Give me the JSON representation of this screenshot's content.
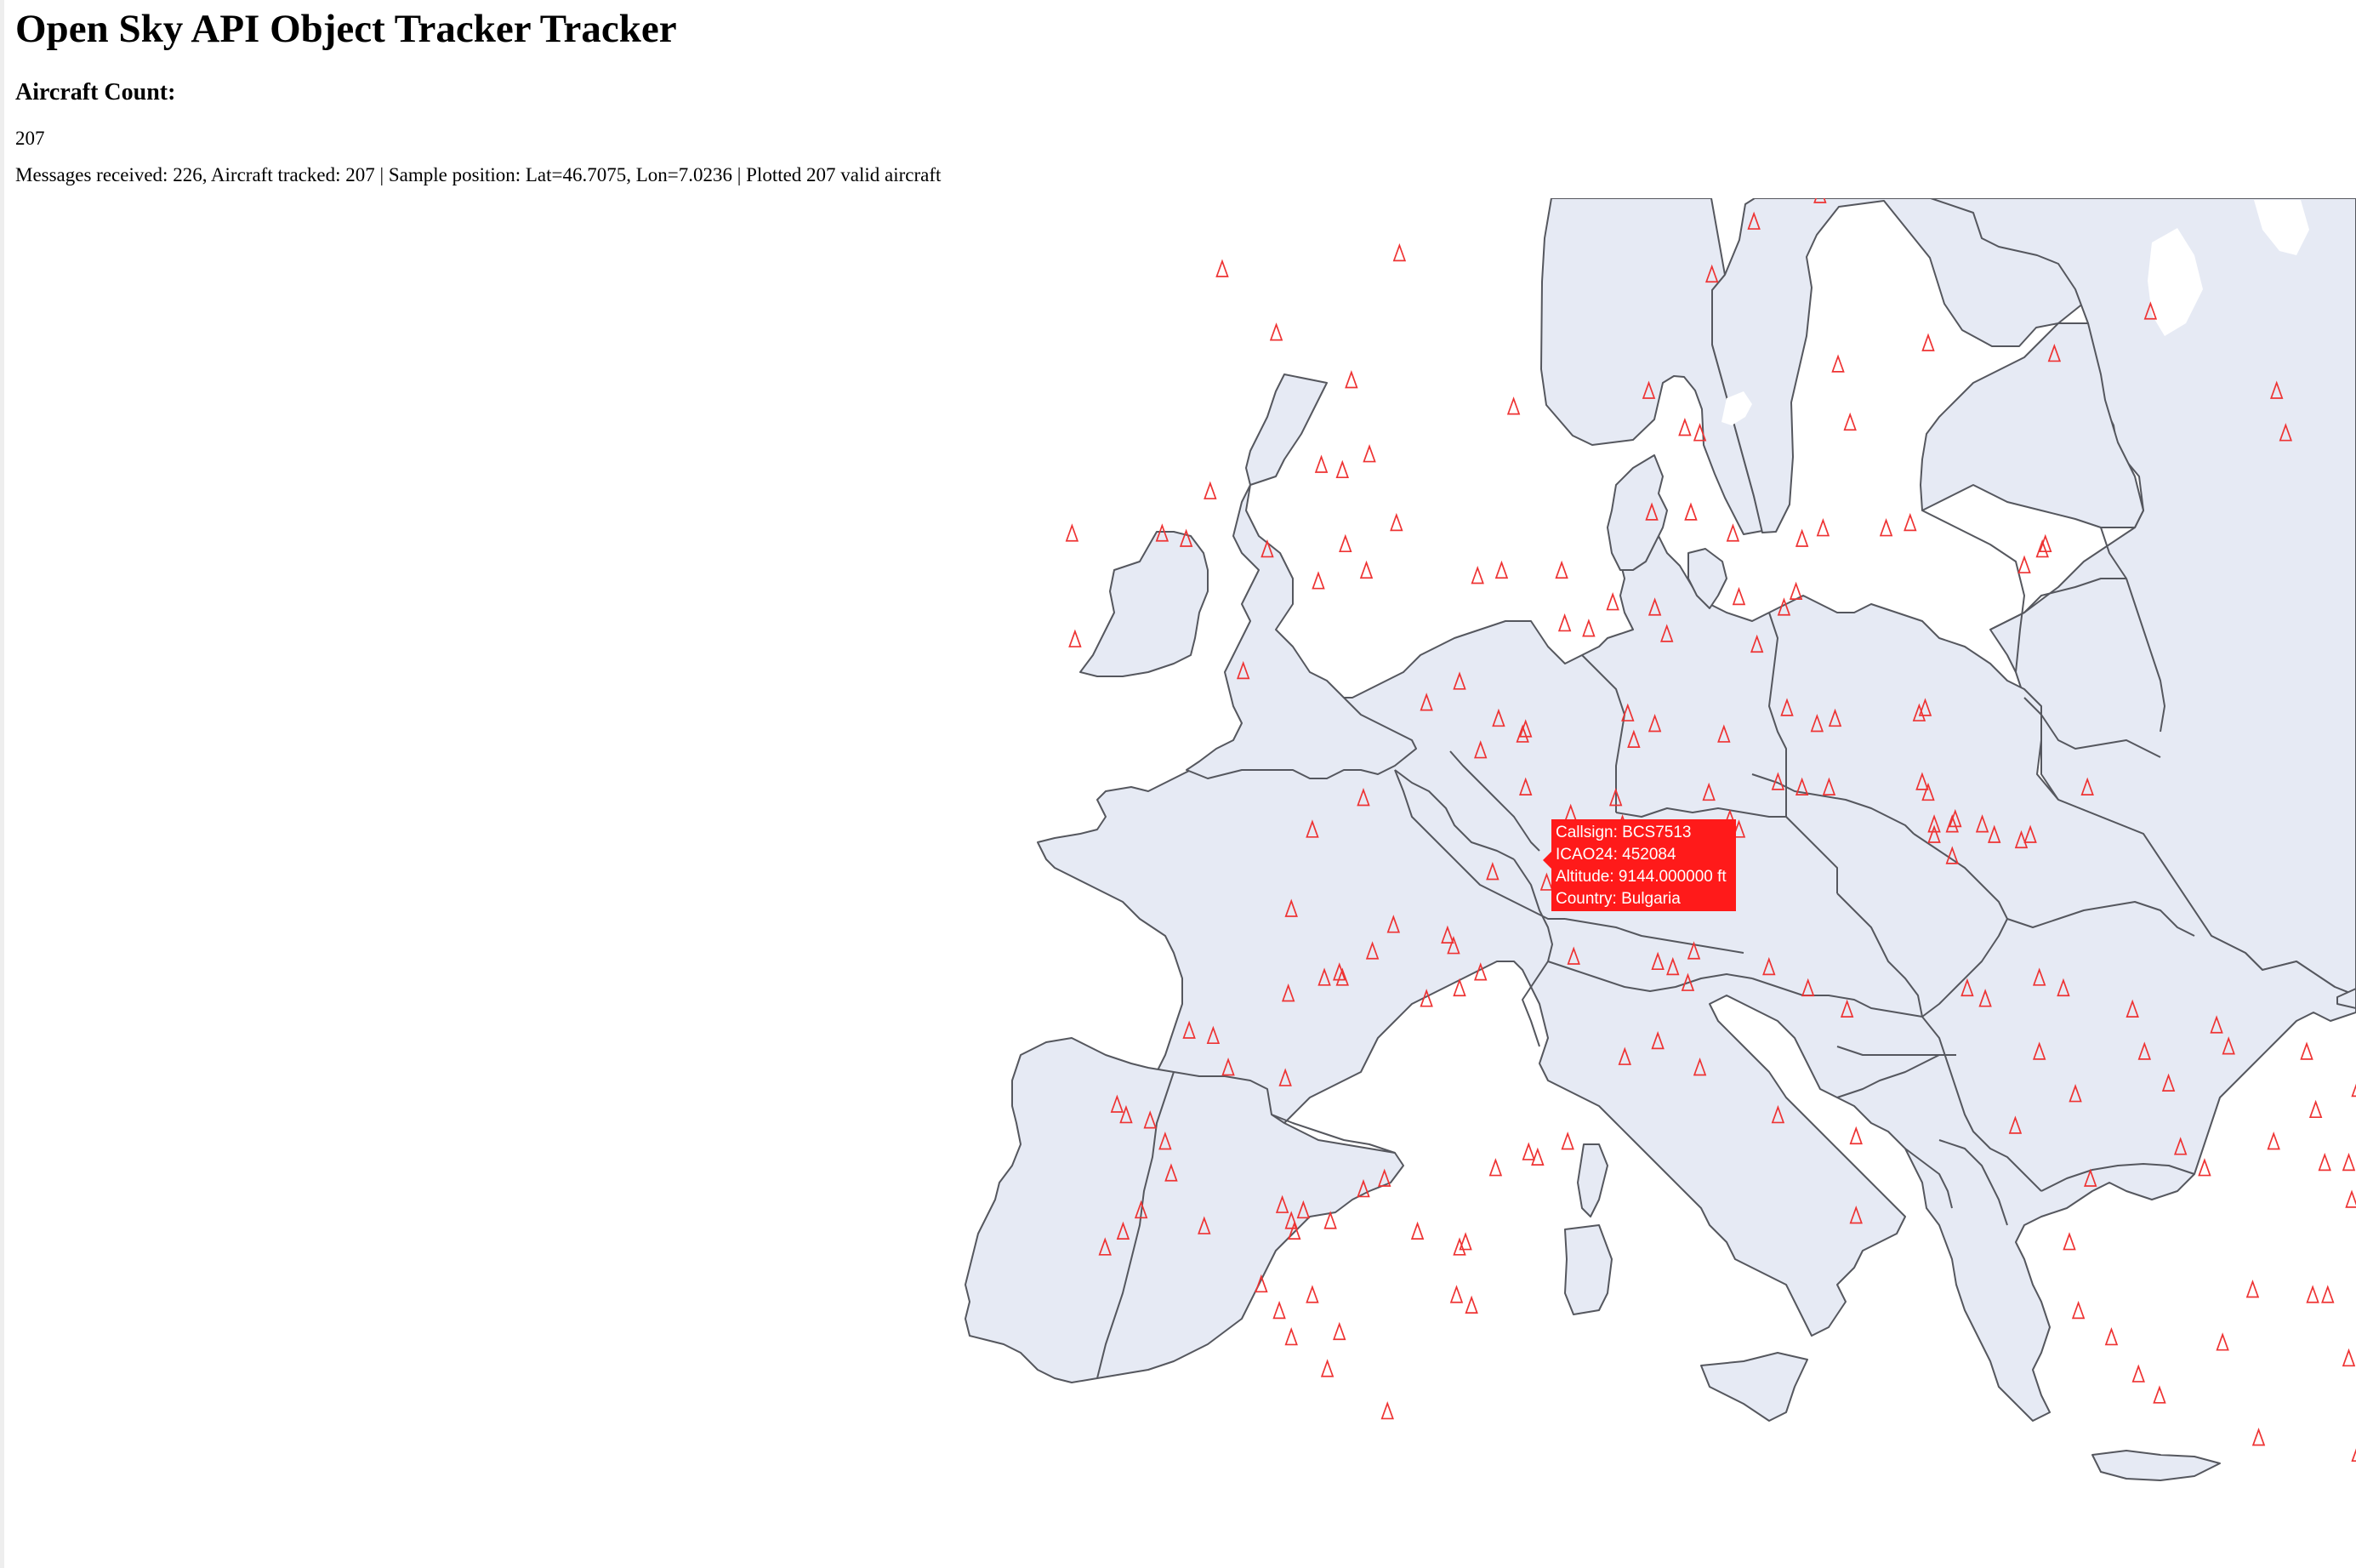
{
  "page": {
    "title": "Open Sky API Object Tracker Tracker",
    "count_heading": "Aircraft Count:",
    "count_value": "207",
    "status_line": "Messages received: 226, Aircraft tracked: 207 | Sample position: Lat=46.7075, Lon=7.0236 | Plotted 207 valid aircraft"
  },
  "tooltip": {
    "callsign": "Callsign: BCS7513",
    "icao24": "ICAO24: 452084",
    "altitude": "Altitude: 9144.000000 ft",
    "country": "Country: Bulgaria"
  },
  "map": {
    "land_color": "#e6eaf4",
    "border_color": "#55575e",
    "marker_color": "#ee3333",
    "marker_icon": "triangle-outline-icon",
    "tooltip_color": "#ff1a1a",
    "highlighted_aircraft": {
      "lat": 46.7075,
      "lon": 7.0236
    },
    "aircraft": [
      [
        61.2,
        5.3
      ],
      [
        60.0,
        -10.1
      ],
      [
        61.3,
        14.4
      ],
      [
        61.7,
        24.0
      ],
      [
        59.1,
        27.1
      ],
      [
        59.7,
        22.6
      ],
      [
        59.2,
        7.9
      ],
      [
        58.8,
        12.7
      ],
      [
        58.6,
        13.6
      ],
      [
        58.1,
        11.4
      ],
      [
        57.1,
        10.0
      ],
      [
        57.2,
        -6.3
      ],
      [
        56.0,
        -4.5
      ],
      [
        57.5,
        -0.4
      ],
      [
        55.4,
        14.2
      ],
      [
        55.6,
        21.4
      ],
      [
        56.4,
        24.6
      ],
      [
        55.8,
        17.2
      ],
      [
        54.3,
        14.6
      ],
      [
        55.1,
        -2.0
      ],
      [
        54.6,
        3.4
      ],
      [
        54.9,
        28.8
      ],
      [
        54.1,
        29.1
      ],
      [
        54.9,
        7.9
      ],
      [
        54.2,
        9.1
      ],
      [
        54.1,
        9.6
      ],
      [
        53.7,
        -1.4
      ],
      [
        53.5,
        -3.0
      ],
      [
        53.4,
        -2.3
      ],
      [
        53.0,
        -6.7
      ],
      [
        52.2,
        -11.3
      ],
      [
        52.2,
        -8.3
      ],
      [
        52.1,
        -7.5
      ],
      [
        51.9,
        -4.8
      ],
      [
        52.4,
        -0.5
      ],
      [
        52.0,
        -2.2
      ],
      [
        51.3,
        -3.1
      ],
      [
        51.5,
        -1.5
      ],
      [
        51.4,
        2.2
      ],
      [
        51.5,
        3.0
      ],
      [
        51.5,
        5.0
      ],
      [
        52.6,
        9.3
      ],
      [
        52.6,
        8.0
      ],
      [
        52.2,
        10.7
      ],
      [
        52.1,
        13.0
      ],
      [
        52.3,
        13.7
      ],
      [
        52.3,
        15.8
      ],
      [
        52.4,
        16.6
      ],
      [
        51.9,
        21.0
      ],
      [
        52.0,
        21.1
      ],
      [
        51.6,
        20.4
      ],
      [
        51.0,
        10.9
      ],
      [
        50.8,
        12.4
      ],
      [
        51.1,
        12.8
      ],
      [
        50.9,
        6.7
      ],
      [
        50.4,
        5.9
      ],
      [
        50.5,
        5.1
      ],
      [
        50.3,
        8.5
      ],
      [
        50.1,
        11.5
      ],
      [
        50.8,
        8.1
      ],
      [
        50.2,
        -11.2
      ],
      [
        49.6,
        -5.6
      ],
      [
        49.0,
        0.5
      ],
      [
        49.4,
        1.6
      ],
      [
        48.7,
        2.9
      ],
      [
        48.5,
        3.8
      ],
      [
        48.4,
        3.7
      ],
      [
        48.1,
        2.3
      ],
      [
        47.4,
        3.8
      ],
      [
        47.2,
        -1.6
      ],
      [
        46.6,
        -3.3
      ],
      [
        48.8,
        7.2
      ],
      [
        48.3,
        7.4
      ],
      [
        48.6,
        8.1
      ],
      [
        48.4,
        10.4
      ],
      [
        48.9,
        12.5
      ],
      [
        48.6,
        13.5
      ],
      [
        48.7,
        14.1
      ],
      [
        48.8,
        16.9
      ],
      [
        48.9,
        17.1
      ],
      [
        47.5,
        12.2
      ],
      [
        47.4,
        13.0
      ],
      [
        47.4,
        13.9
      ],
      [
        47.5,
        17.0
      ],
      [
        47.3,
        17.2
      ],
      [
        46.7,
        17.4
      ],
      [
        46.7,
        18.0
      ],
      [
        46.8,
        18.1
      ],
      [
        46.5,
        17.4
      ],
      [
        46.1,
        18.0
      ],
      [
        46.7,
        19.0
      ],
      [
        46.5,
        19.4
      ],
      [
        46.4,
        20.3
      ],
      [
        46.5,
        20.6
      ],
      [
        47.4,
        22.5
      ],
      [
        47.2,
        6.8
      ],
      [
        46.9,
        5.3
      ],
      [
        47.3,
        9.9
      ],
      [
        46.8,
        10.6
      ],
      [
        46.6,
        10.9
      ],
      [
        46.7,
        7.0236
      ],
      [
        46.3,
        8.1
      ],
      [
        45.8,
        8.3
      ],
      [
        45.6,
        4.5
      ],
      [
        45.8,
        2.7
      ],
      [
        45.1,
        -4.0
      ],
      [
        44.2,
        5.4
      ],
      [
        44.6,
        1.2
      ],
      [
        44.8,
        -0.6
      ],
      [
        44.3,
        -1.3
      ],
      [
        43.8,
        -2.9
      ],
      [
        43.5,
        -4.1
      ],
      [
        43.9,
        -2.4
      ],
      [
        43.8,
        -2.3
      ],
      [
        44.4,
        1.4
      ],
      [
        43.6,
        1.6
      ],
      [
        43.9,
        2.3
      ],
      [
        43.4,
        0.5
      ],
      [
        44.3,
        9.4
      ],
      [
        44.1,
        8.2
      ],
      [
        44.0,
        8.7
      ],
      [
        43.7,
        9.2
      ],
      [
        44.0,
        11.9
      ],
      [
        43.6,
        13.2
      ],
      [
        43.2,
        14.5
      ],
      [
        43.6,
        18.5
      ],
      [
        43.4,
        19.1
      ],
      [
        43.8,
        20.9
      ],
      [
        43.6,
        21.7
      ],
      [
        42.8,
        -7.4
      ],
      [
        42.7,
        -6.6
      ],
      [
        42.1,
        -6.1
      ],
      [
        41.9,
        -4.2
      ],
      [
        41.4,
        -9.8
      ],
      [
        41.2,
        -9.5
      ],
      [
        41.1,
        -8.7
      ],
      [
        40.7,
        -8.2
      ],
      [
        40.1,
        -8.0
      ],
      [
        39.4,
        -9.0
      ],
      [
        39.0,
        -9.6
      ],
      [
        38.7,
        -10.2
      ],
      [
        39.1,
        -6.9
      ],
      [
        39.5,
        -4.3
      ],
      [
        39.2,
        -4.0
      ],
      [
        39.4,
        -3.6
      ],
      [
        39.0,
        -3.9
      ],
      [
        39.2,
        -2.7
      ],
      [
        39.8,
        -1.6
      ],
      [
        40.0,
        -0.9
      ],
      [
        39.0,
        0.2
      ],
      [
        38.8,
        1.8
      ],
      [
        38.7,
        1.6
      ],
      [
        40.2,
        2.8
      ],
      [
        40.5,
        3.9
      ],
      [
        40.4,
        4.2
      ],
      [
        40.7,
        5.2
      ],
      [
        42.3,
        7.1
      ],
      [
        42.6,
        8.2
      ],
      [
        42.1,
        9.6
      ],
      [
        41.2,
        12.2
      ],
      [
        40.8,
        14.8
      ],
      [
        39.3,
        14.8
      ],
      [
        38.0,
        -5.0
      ],
      [
        37.0,
        -4.0
      ],
      [
        37.5,
        -4.4
      ],
      [
        37.8,
        -3.3
      ],
      [
        37.1,
        -2.4
      ],
      [
        36.4,
        -2.8
      ],
      [
        37.8,
        1.5
      ],
      [
        37.6,
        2.0
      ],
      [
        35.6,
        -0.8
      ],
      [
        42.4,
        20.9
      ],
      [
        41.6,
        22.1
      ],
      [
        41.0,
        20.1
      ],
      [
        42.4,
        24.4
      ],
      [
        42.9,
        26.8
      ],
      [
        43.2,
        24.0
      ],
      [
        41.8,
        25.2
      ],
      [
        42.5,
        27.2
      ],
      [
        40.6,
        25.6
      ],
      [
        40.2,
        26.4
      ],
      [
        40.0,
        22.6
      ],
      [
        38.8,
        21.9
      ],
      [
        37.5,
        22.2
      ],
      [
        37.0,
        23.3
      ],
      [
        36.3,
        24.2
      ],
      [
        35.9,
        24.9
      ],
      [
        37.9,
        28.0
      ],
      [
        37.8,
        30.0
      ],
      [
        36.6,
        31.2
      ],
      [
        39.6,
        31.3
      ],
      [
        40.3,
        30.4
      ],
      [
        40.3,
        31.2
      ],
      [
        40.3,
        32.0
      ],
      [
        38.0,
        34.6
      ],
      [
        37.8,
        30.5
      ],
      [
        34.8,
        31.5
      ],
      [
        35.1,
        28.2
      ],
      [
        36.9,
        27.0
      ],
      [
        39.9,
        33.2
      ],
      [
        41.2,
        33.8
      ],
      [
        40.7,
        28.7
      ],
      [
        41.3,
        30.1
      ],
      [
        41.7,
        31.5
      ],
      [
        42.1,
        33.0
      ],
      [
        43.0,
        34.2
      ],
      [
        42.4,
        29.8
      ]
    ]
  }
}
